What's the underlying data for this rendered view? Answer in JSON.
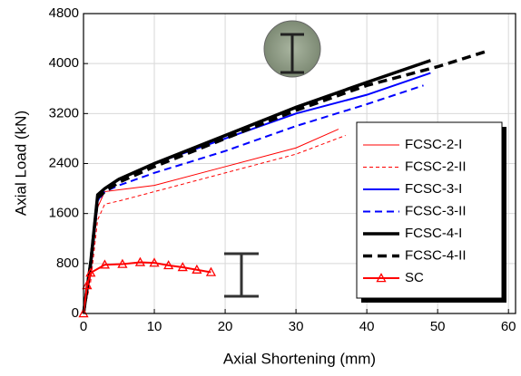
{
  "chart_data": {
    "type": "line",
    "xlabel": "Axial Shortening (mm)",
    "ylabel": "Axial Load (kN)",
    "xlim": [
      0,
      61
    ],
    "xticks": [
      0,
      10,
      20,
      30,
      40,
      50,
      60
    ],
    "ylim": [
      0,
      4800
    ],
    "yticks": [
      0,
      800,
      1600,
      2400,
      3200,
      4000,
      4800
    ],
    "grid": true,
    "legend": "right",
    "series": [
      {
        "name": "FCSC-2-I",
        "color": "#ff0000",
        "width": 1,
        "dash": false,
        "x": [
          0,
          1,
          2,
          3,
          5,
          10,
          20,
          30,
          36
        ],
        "values": [
          0,
          600,
          1700,
          1950,
          1980,
          2050,
          2350,
          2650,
          2950
        ]
      },
      {
        "name": "FCSC-2-II",
        "color": "#ff0000",
        "width": 1,
        "dash": true,
        "x": [
          0,
          1,
          2,
          3,
          5,
          10,
          20,
          30,
          37
        ],
        "values": [
          0,
          500,
          1500,
          1750,
          1800,
          1950,
          2250,
          2550,
          2850
        ]
      },
      {
        "name": "FCSC-3-I",
        "color": "#0000ff",
        "width": 2,
        "dash": false,
        "x": [
          0,
          1,
          2,
          3,
          5,
          10,
          20,
          30,
          40,
          49
        ],
        "values": [
          0,
          700,
          1800,
          2000,
          2150,
          2400,
          2800,
          3200,
          3500,
          3850
        ]
      },
      {
        "name": "FCSC-3-II",
        "color": "#0000ff",
        "width": 2,
        "dash": true,
        "x": [
          0,
          1,
          2,
          3,
          5,
          10,
          20,
          30,
          40,
          48
        ],
        "values": [
          0,
          700,
          1800,
          1950,
          2050,
          2250,
          2600,
          3000,
          3350,
          3650
        ]
      },
      {
        "name": "FCSC-4-I",
        "color": "#000000",
        "width": 3.5,
        "dash": false,
        "x": [
          0,
          1,
          2,
          3,
          5,
          10,
          20,
          30,
          40,
          49
        ],
        "values": [
          0,
          800,
          1900,
          2000,
          2150,
          2400,
          2850,
          3300,
          3700,
          4050
        ]
      },
      {
        "name": "FCSC-4-II",
        "color": "#000000",
        "width": 3.5,
        "dash": true,
        "x": [
          0,
          1,
          2,
          3,
          5,
          10,
          20,
          30,
          40,
          50,
          57
        ],
        "values": [
          0,
          800,
          1850,
          1950,
          2100,
          2350,
          2800,
          3250,
          3650,
          3950,
          4200
        ]
      },
      {
        "name": "SC",
        "color": "#ff0000",
        "width": 2,
        "dash": false,
        "marker": "triangle",
        "x": [
          0,
          0.5,
          1,
          3,
          5.5,
          8,
          10,
          12,
          14,
          16,
          18
        ],
        "values": [
          0,
          450,
          650,
          780,
          790,
          820,
          810,
          770,
          740,
          700,
          660
        ]
      }
    ]
  }
}
